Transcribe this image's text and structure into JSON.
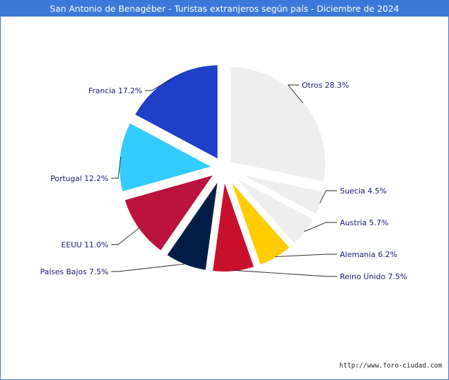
{
  "chart_data": {
    "type": "pie",
    "title": "San Antonio de Benagéber - Turistas extranjeros según país - Diciembre de 2024",
    "slices": [
      {
        "label": "Otros",
        "value": 28.3,
        "display": "Otros 28.3%",
        "color": "#eeeeee"
      },
      {
        "label": "Suecia",
        "value": 4.5,
        "display": "Suecia 4.5%",
        "color": "#eeeeee"
      },
      {
        "label": "Austria",
        "value": 5.7,
        "display": "Austria 5.7%",
        "color": "#eeeeee"
      },
      {
        "label": "Alemania",
        "value": 6.2,
        "display": "Alemania 6.2%",
        "color": "#ffcc00"
      },
      {
        "label": "Reino Unido",
        "value": 7.5,
        "display": "Reino Unido 7.5%",
        "color": "#c8102e"
      },
      {
        "label": "Países Bajos",
        "value": 7.5,
        "display": "Países Bajos 7.5%",
        "color": "#001e45"
      },
      {
        "label": "EEUU",
        "value": 11.0,
        "display": "EEUU 11.0%",
        "color": "#bb133e"
      },
      {
        "label": "Portugal",
        "value": 12.2,
        "display": "Portugal 12.2%",
        "color": "#33ccff"
      },
      {
        "label": "Francia",
        "value": 17.2,
        "display": "Francia 17.2%",
        "color": "#1e40c8"
      }
    ],
    "source": "http://www.foro-ciudad.com"
  }
}
